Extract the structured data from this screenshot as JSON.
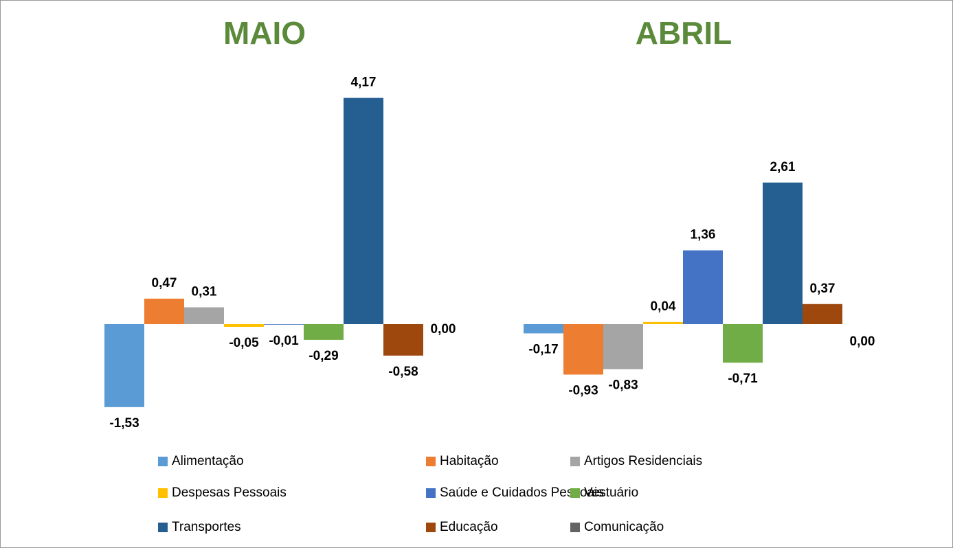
{
  "chart_data": {
    "type": "bar",
    "categories": [
      "MAIO",
      "ABRIL"
    ],
    "series": [
      {
        "name": "Alimentação",
        "color": "#5b9bd5",
        "values": [
          -1.53,
          -0.17
        ],
        "value_labels": [
          "-1,53",
          "-0,17"
        ]
      },
      {
        "name": "Habitação",
        "color": "#ed7d31",
        "values": [
          0.47,
          -0.93
        ],
        "value_labels": [
          "0,47",
          "-0,93"
        ]
      },
      {
        "name": "Artigos Residenciais",
        "color": "#a5a5a5",
        "values": [
          0.31,
          -0.83
        ],
        "value_labels": [
          "0,31",
          "-0,83"
        ]
      },
      {
        "name": "Despesas Pessoais",
        "color": "#ffc000",
        "values": [
          -0.05,
          0.04
        ],
        "value_labels": [
          "-0,05",
          "0,04"
        ]
      },
      {
        "name": "Saúde e Cuidados Pessoais",
        "color": "#4472c4",
        "values": [
          -0.01,
          1.36
        ],
        "value_labels": [
          "-0,01",
          "1,36"
        ]
      },
      {
        "name": "Vestuário",
        "color": "#70ad47",
        "values": [
          -0.29,
          -0.71
        ],
        "value_labels": [
          "-0,29",
          "-0,71"
        ]
      },
      {
        "name": "Transportes",
        "color": "#255e91",
        "values": [
          4.17,
          2.61
        ],
        "value_labels": [
          "4,17",
          "2,61"
        ]
      },
      {
        "name": "Educação",
        "color": "#9e480e",
        "values": [
          -0.58,
          0.37
        ],
        "value_labels": [
          "-0,58",
          "0,37"
        ]
      },
      {
        "name": "Comunicação",
        "color": "#636363",
        "values": [
          0,
          0
        ],
        "value_labels": [
          "0,00",
          "0,00"
        ]
      }
    ]
  }
}
